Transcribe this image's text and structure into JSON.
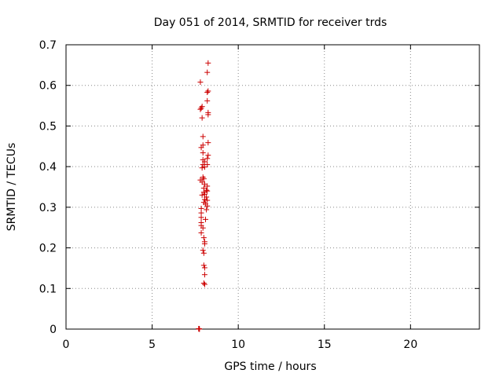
{
  "chart_data": {
    "type": "scatter",
    "title": "Day 051 of 2014, SRMTID for receiver trds",
    "xlabel": "GPS time / hours",
    "ylabel": "SRMTID / TECUs",
    "xlim": [
      0,
      24
    ],
    "ylim": [
      0,
      0.7
    ],
    "xticks": [
      0,
      5,
      10,
      15,
      20
    ],
    "yticks": [
      0,
      0.1,
      0.2,
      0.3,
      0.4,
      0.5,
      0.6,
      0.7
    ],
    "grid": true,
    "marker": "+",
    "color": "#cc0000",
    "series": [
      {
        "name": "SRMTID",
        "points": [
          [
            8.25,
            0.655
          ],
          [
            8.2,
            0.632
          ],
          [
            7.8,
            0.608
          ],
          [
            8.25,
            0.586
          ],
          [
            8.2,
            0.583
          ],
          [
            8.2,
            0.562
          ],
          [
            7.9,
            0.548
          ],
          [
            7.8,
            0.541
          ],
          [
            7.85,
            0.544
          ],
          [
            8.25,
            0.533
          ],
          [
            8.25,
            0.528
          ],
          [
            7.9,
            0.52
          ],
          [
            7.95,
            0.474
          ],
          [
            8.25,
            0.459
          ],
          [
            7.95,
            0.453
          ],
          [
            7.85,
            0.447
          ],
          [
            7.95,
            0.434
          ],
          [
            8.25,
            0.428
          ],
          [
            8.2,
            0.42
          ],
          [
            7.95,
            0.417
          ],
          [
            8.05,
            0.412
          ],
          [
            7.95,
            0.405
          ],
          [
            8.2,
            0.405
          ],
          [
            8.05,
            0.399
          ],
          [
            7.9,
            0.397
          ],
          [
            7.95,
            0.374
          ],
          [
            8.0,
            0.37
          ],
          [
            7.8,
            0.367
          ],
          [
            7.9,
            0.362
          ],
          [
            8.05,
            0.357
          ],
          [
            8.2,
            0.352
          ],
          [
            8.0,
            0.347
          ],
          [
            8.15,
            0.342
          ],
          [
            8.2,
            0.34
          ],
          [
            8.0,
            0.337
          ],
          [
            8.05,
            0.332
          ],
          [
            7.9,
            0.33
          ],
          [
            8.15,
            0.325
          ],
          [
            8.05,
            0.319
          ],
          [
            8.2,
            0.317
          ],
          [
            8.0,
            0.312
          ],
          [
            8.1,
            0.308
          ],
          [
            8.2,
            0.303
          ],
          [
            7.85,
            0.297
          ],
          [
            8.15,
            0.294
          ],
          [
            7.85,
            0.286
          ],
          [
            7.85,
            0.275
          ],
          [
            8.1,
            0.27
          ],
          [
            7.85,
            0.262
          ],
          [
            7.85,
            0.255
          ],
          [
            7.95,
            0.249
          ],
          [
            7.85,
            0.237
          ],
          [
            8.0,
            0.225
          ],
          [
            8.05,
            0.215
          ],
          [
            8.05,
            0.21
          ],
          [
            7.95,
            0.194
          ],
          [
            8.0,
            0.187
          ],
          [
            8.0,
            0.157
          ],
          [
            8.05,
            0.151
          ],
          [
            8.05,
            0.134
          ],
          [
            8.0,
            0.113
          ],
          [
            8.05,
            0.11
          ],
          [
            7.7,
            0.001
          ],
          [
            7.75,
            0.0
          ],
          [
            7.72,
            0.0
          ],
          [
            7.73,
            0.001
          ]
        ]
      }
    ]
  }
}
